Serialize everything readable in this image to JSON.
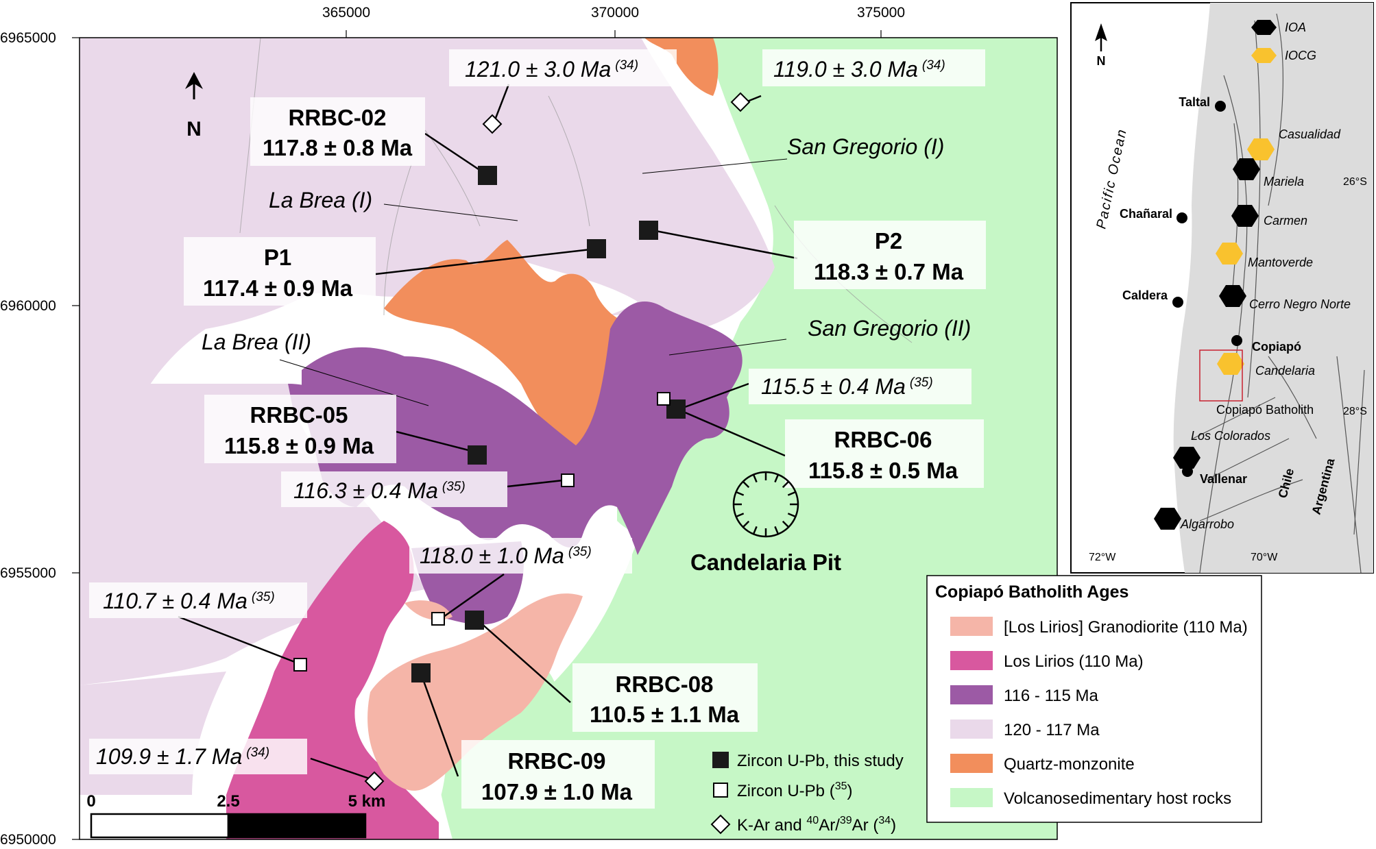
{
  "axes": {
    "x_ticks": [
      "365000",
      "370000",
      "375000"
    ],
    "y_ticks": [
      "6965000",
      "6960000",
      "6955000",
      "6950000"
    ]
  },
  "north_label": "N",
  "samples": [
    {
      "id": "RRBC-02",
      "age": "117.8 ± 0.8 Ma"
    },
    {
      "id": "P1",
      "age": "117.4 ± 0.9 Ma"
    },
    {
      "id": "P2",
      "age": "118.3 ± 0.7 Ma"
    },
    {
      "id": "RRBC-05",
      "age": "115.8 ± 0.9 Ma"
    },
    {
      "id": "RRBC-06",
      "age": "115.8 ± 0.5 Ma"
    },
    {
      "id": "RRBC-08",
      "age": "110.5 ± 1.1 Ma"
    },
    {
      "id": "RRBC-09",
      "age": "107.9 ± 1.0 Ma"
    }
  ],
  "literature_ages": [
    {
      "age": "121.0 ± 3.0 Ma",
      "ref": "(34)"
    },
    {
      "age": "119.0 ± 3.0 Ma",
      "ref": "(34)"
    },
    {
      "age": "115.5 ± 0.4 Ma",
      "ref": "(35)"
    },
    {
      "age": "116.3 ± 0.4 Ma",
      "ref": "(35)"
    },
    {
      "age": "118.0 ± 1.0 Ma",
      "ref": "(35)"
    },
    {
      "age": "110.7 ± 0.4 Ma",
      "ref": "(35)"
    },
    {
      "age": "109.9 ± 1.7 Ma",
      "ref": "(34)"
    }
  ],
  "unit_labels": {
    "la_brea_1": "La Brea (I)",
    "la_brea_2": "La Brea (II)",
    "san_gregorio_1": "San Gregorio (I)",
    "san_gregorio_2": "San Gregorio (II)"
  },
  "pit_label": "Candelaria Pit",
  "scale_bar": {
    "labels": [
      "0",
      "2.5",
      "5 km"
    ]
  },
  "symbol_legend": {
    "filled_square": "Zircon U-Pb, this study",
    "open_square": "Zircon U-Pb (",
    "open_square_ref": "35",
    "diamond": "K-Ar and ",
    "diamond_sup1": "40",
    "diamond_mid": "Ar/",
    "diamond_sup2": "39",
    "diamond_end": "Ar (",
    "diamond_ref": "34"
  },
  "legend": {
    "title": "Copiapó Batholith Ages",
    "items": [
      {
        "label": "[Los Lirios] Granodiorite (110 Ma)",
        "color": "#f5b5a8"
      },
      {
        "label": "Los Lirios (110 Ma)",
        "color": "#d8589f"
      },
      {
        "label": "116 - 115 Ma",
        "color": "#9c5aa5"
      },
      {
        "label": "120 - 117 Ma",
        "color": "#ead9ea"
      },
      {
        "label": "Quartz-monzonite",
        "color": "#f28e5c"
      },
      {
        "label": "Volcanosedimentary host rocks",
        "color": "#c6f7c6"
      }
    ]
  },
  "inset": {
    "north_label": "N",
    "legend": [
      {
        "label": "IOA",
        "color": "#000000"
      },
      {
        "label": "IOCG",
        "color": "#f9c22e"
      }
    ],
    "ocean_label": "Pacific Ocean",
    "towns": [
      "Taltal",
      "Chañaral",
      "Caldera",
      "Copiapó",
      "Vallenar"
    ],
    "deposits": [
      "Casualidad",
      "Mariela",
      "Carmen",
      "Mantoverde",
      "Cerro Negro Norte",
      "Candelaria",
      "Los Colorados",
      "Algarrobo"
    ],
    "batholith_label": "Copiapó Batholith",
    "lat_labels": [
      "26°S",
      "28°S"
    ],
    "lon_labels": [
      "72°W",
      "70°W"
    ],
    "country_labels": [
      "Chile",
      "Argentina"
    ]
  },
  "colors": {
    "host": "#c6f7c6",
    "unit_120_117": "#ead9ea",
    "unit_116_115": "#9c5aa5",
    "los_lirios": "#d8589f",
    "granodiorite": "#f5b5a8",
    "quartz_monzonite": "#f28e5c",
    "inset_land": "#dcdcdc",
    "inset_frame": "#c8202e"
  }
}
